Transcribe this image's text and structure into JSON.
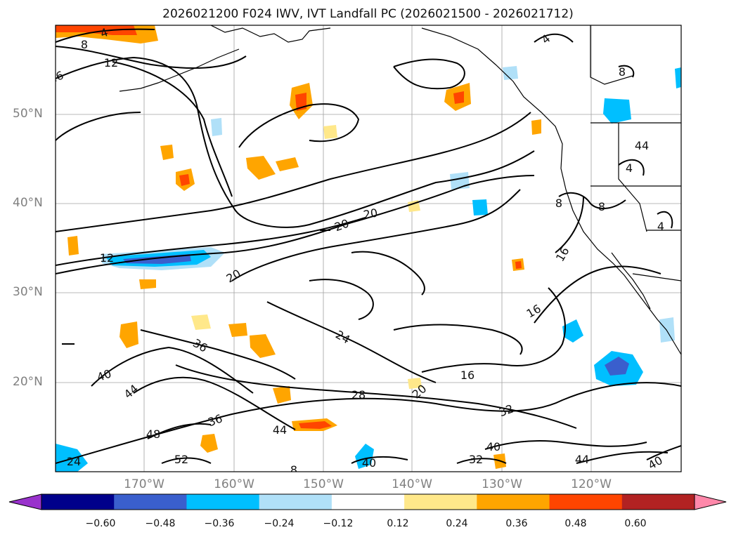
{
  "title": "2026021200 F024 IWV, IVT Landfall PC (2026021500 - 2026021712)",
  "lat_labels": [
    "50°N",
    "40°N",
    "30°N",
    "20°N"
  ],
  "lon_labels": [
    "170°W",
    "160°W",
    "150°W",
    "140°W",
    "130°W",
    "120°W"
  ],
  "colorbar": {
    "ticks": [
      "−0.60",
      "−0.48",
      "−0.36",
      "−0.24",
      "−0.12",
      "0.12",
      "0.24",
      "0.36",
      "0.48",
      "0.60"
    ],
    "colors": [
      "#9932cc",
      "#00008b",
      "#3a5fcd",
      "#00bfff",
      "#b0e0f8",
      "#ffffff",
      "#ffe88a",
      "#ffa500",
      "#ff4500",
      "#b22222",
      "#ff88aa"
    ]
  },
  "contour_labels": [
    "4",
    "8",
    "12",
    "16",
    "20",
    "20",
    "12",
    "20",
    "36",
    "40",
    "44",
    "24",
    "16",
    "28",
    "20",
    "32",
    "36",
    "44",
    "48",
    "52",
    "40",
    "32",
    "40",
    "44",
    "40",
    "16",
    "16",
    "4",
    "8",
    "4",
    "8",
    "8",
    "4",
    "8",
    "24",
    "44"
  ]
}
